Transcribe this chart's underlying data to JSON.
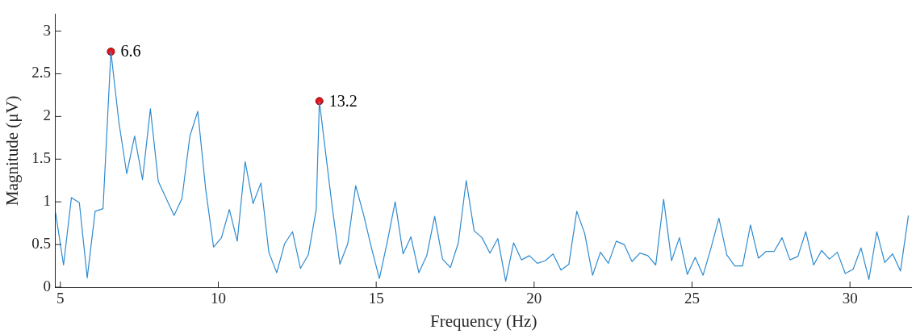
{
  "chart_data": {
    "type": "line",
    "xlabel": "Frequency (Hz)",
    "ylabel": "Magnitude (μV)",
    "xlim": [
      4.85,
      31.95
    ],
    "xticks": [
      5,
      10,
      15,
      20,
      25,
      30
    ],
    "ylim": [
      0,
      3.2
    ],
    "yticks": [
      0,
      0.5,
      1,
      1.5,
      2,
      2.5,
      3
    ],
    "grid": false,
    "legend": false,
    "series": [
      {
        "color": "#2e8bd0",
        "marker": "none",
        "x": [
          4.85,
          5.1,
          5.35,
          5.6,
          5.85,
          6.1,
          6.35,
          6.6,
          6.85,
          7.1,
          7.35,
          7.6,
          7.85,
          8.1,
          8.35,
          8.6,
          8.85,
          9.1,
          9.35,
          9.6,
          9.85,
          10.1,
          10.35,
          10.6,
          10.85,
          11.1,
          11.35,
          11.6,
          11.85,
          12.1,
          12.35,
          12.6,
          12.85,
          13.1,
          13.2,
          13.6,
          13.85,
          14.1,
          14.35,
          14.6,
          14.85,
          15.1,
          15.35,
          15.6,
          15.85,
          16.1,
          16.35,
          16.6,
          16.85,
          17.1,
          17.35,
          17.6,
          17.85,
          18.1,
          18.35,
          18.6,
          18.85,
          19.1,
          19.35,
          19.6,
          19.85,
          20.1,
          20.35,
          20.6,
          20.85,
          21.1,
          21.35,
          21.6,
          21.85,
          22.1,
          22.35,
          22.6,
          22.85,
          23.1,
          23.35,
          23.6,
          23.85,
          24.1,
          24.35,
          24.6,
          24.85,
          25.1,
          25.35,
          25.6,
          25.85,
          26.1,
          26.35,
          26.6,
          26.85,
          27.1,
          27.35,
          27.6,
          27.85,
          28.1,
          28.35,
          28.6,
          28.85,
          29.1,
          29.35,
          29.6,
          29.85,
          30.1,
          30.35,
          30.6,
          30.85,
          31.1,
          31.35,
          31.6,
          31.85
        ],
        "values": [
          0.87,
          0.26,
          1.05,
          0.99,
          0.11,
          0.89,
          0.92,
          2.76,
          1.94,
          1.33,
          1.77,
          1.26,
          2.09,
          1.24,
          1.04,
          0.84,
          1.04,
          1.77,
          2.06,
          1.15,
          0.47,
          0.58,
          0.91,
          0.54,
          1.47,
          0.98,
          1.22,
          0.41,
          0.17,
          0.51,
          0.65,
          0.22,
          0.38,
          0.91,
          2.18,
          0.96,
          0.27,
          0.51,
          1.19,
          0.85,
          0.46,
          0.1,
          0.53,
          1.0,
          0.39,
          0.59,
          0.17,
          0.37,
          0.83,
          0.33,
          0.23,
          0.52,
          1.25,
          0.66,
          0.58,
          0.4,
          0.57,
          0.07,
          0.52,
          0.32,
          0.37,
          0.28,
          0.31,
          0.39,
          0.2,
          0.27,
          0.89,
          0.63,
          0.14,
          0.41,
          0.28,
          0.54,
          0.5,
          0.3,
          0.4,
          0.37,
          0.26,
          1.03,
          0.31,
          0.58,
          0.15,
          0.35,
          0.14,
          0.46,
          0.81,
          0.38,
          0.25,
          0.25,
          0.73,
          0.34,
          0.42,
          0.42,
          0.58,
          0.32,
          0.36,
          0.65,
          0.26,
          0.43,
          0.33,
          0.41,
          0.16,
          0.21,
          0.46,
          0.09,
          0.65,
          0.29,
          0.39,
          0.19,
          0.84
        ]
      },
      {
        "type": "scatter",
        "color": "#e8141b",
        "marker": "circle",
        "x": [
          6.6,
          13.2
        ],
        "values": [
          2.76,
          2.18
        ]
      }
    ],
    "annotations": [
      {
        "text": "6.6",
        "x": 6.6,
        "y": 2.76
      },
      {
        "text": "13.2",
        "x": 13.2,
        "y": 2.18
      }
    ]
  }
}
